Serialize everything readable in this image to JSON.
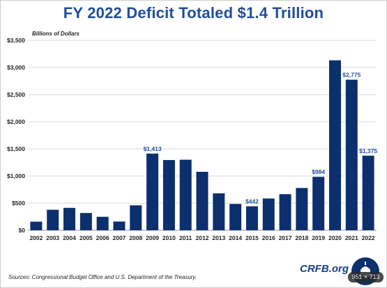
{
  "title": "FY 2022 Deficit Totaled $1.4 Trillion",
  "source": "Sources: Congressional Budget Office and U.S. Department of the Treasury.",
  "brand": "CRFB.org",
  "size_badge": "951 × 713",
  "colors": {
    "bar": "#0c2f6e",
    "title": "#1f4e9c",
    "label": "#1f4e9c",
    "grid": "#d9d9d9"
  },
  "chart_data": {
    "type": "bar",
    "title": "FY 2022 Deficit Totaled $1.4 Trillion",
    "ylabel": "Billions of Dollars",
    "xlabel": "",
    "ylim": [
      0,
      3500
    ],
    "yticks": [
      0,
      500,
      1000,
      1500,
      2000,
      2500,
      3000,
      3500
    ],
    "ytick_labels": [
      "$0",
      "$500",
      "$1,000",
      "$1,500",
      "$2,000",
      "$2,500",
      "$3,000",
      "$3,500"
    ],
    "grid": true,
    "categories": [
      "2002",
      "2003",
      "2004",
      "2005",
      "2006",
      "2007",
      "2008",
      "2009",
      "2010",
      "2011",
      "2012",
      "2013",
      "2014",
      "2015",
      "2016",
      "2017",
      "2018",
      "2019",
      "2020",
      "2021",
      "2022"
    ],
    "values": [
      158,
      378,
      413,
      318,
      248,
      161,
      459,
      1413,
      1294,
      1300,
      1077,
      680,
      485,
      442,
      585,
      665,
      779,
      984,
      3132,
      2775,
      1375
    ],
    "data_labels": {
      "2009": "$1,413",
      "2015": "$442",
      "2019": "$984",
      "2021": "$2,775",
      "2022": "$1,375"
    }
  }
}
